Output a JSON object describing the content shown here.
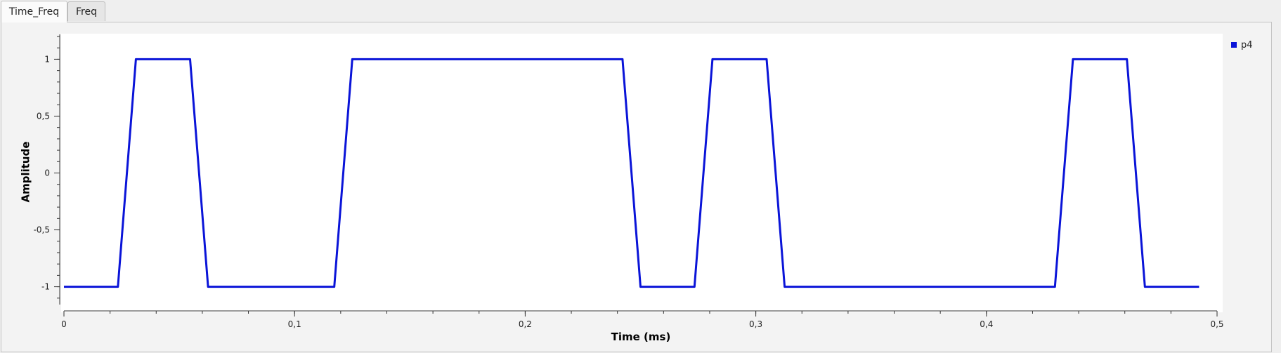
{
  "tabs": [
    {
      "label": "Time_Freq",
      "active": true
    },
    {
      "label": "Freq",
      "active": false
    }
  ],
  "colors": {
    "series": "#0a14d8",
    "plot_bg": "#ffffff"
  },
  "chart_data": {
    "type": "line",
    "xlabel": "Time (ms)",
    "ylabel": "Amplitude",
    "xlim": [
      0,
      0.5
    ],
    "ylim": [
      -1.2,
      1.2
    ],
    "xticks": [
      0,
      0.1,
      0.2,
      0.3,
      0.4,
      0.5
    ],
    "xtick_labels": [
      "0",
      "0,1",
      "0,2",
      "0,3",
      "0,4",
      "0,5"
    ],
    "yticks": [
      1,
      0.5,
      0,
      -0.5,
      -1
    ],
    "ytick_labels": [
      "1",
      "0,5",
      "0",
      "-0,5",
      "-1"
    ],
    "grid": false,
    "legend_position": "top-right",
    "series": [
      {
        "name": "p4",
        "x": [
          0,
          0.0234,
          0.0312,
          0.0547,
          0.0625,
          0.1172,
          0.125,
          0.2422,
          0.25,
          0.2734,
          0.2812,
          0.3047,
          0.3125,
          0.4297,
          0.4375,
          0.4609,
          0.4687,
          0.4922
        ],
        "y": [
          -1,
          -1,
          1,
          1,
          -1,
          -1,
          1,
          1,
          -1,
          -1,
          1,
          1,
          -1,
          -1,
          1,
          1,
          -1,
          -1
        ]
      }
    ]
  }
}
